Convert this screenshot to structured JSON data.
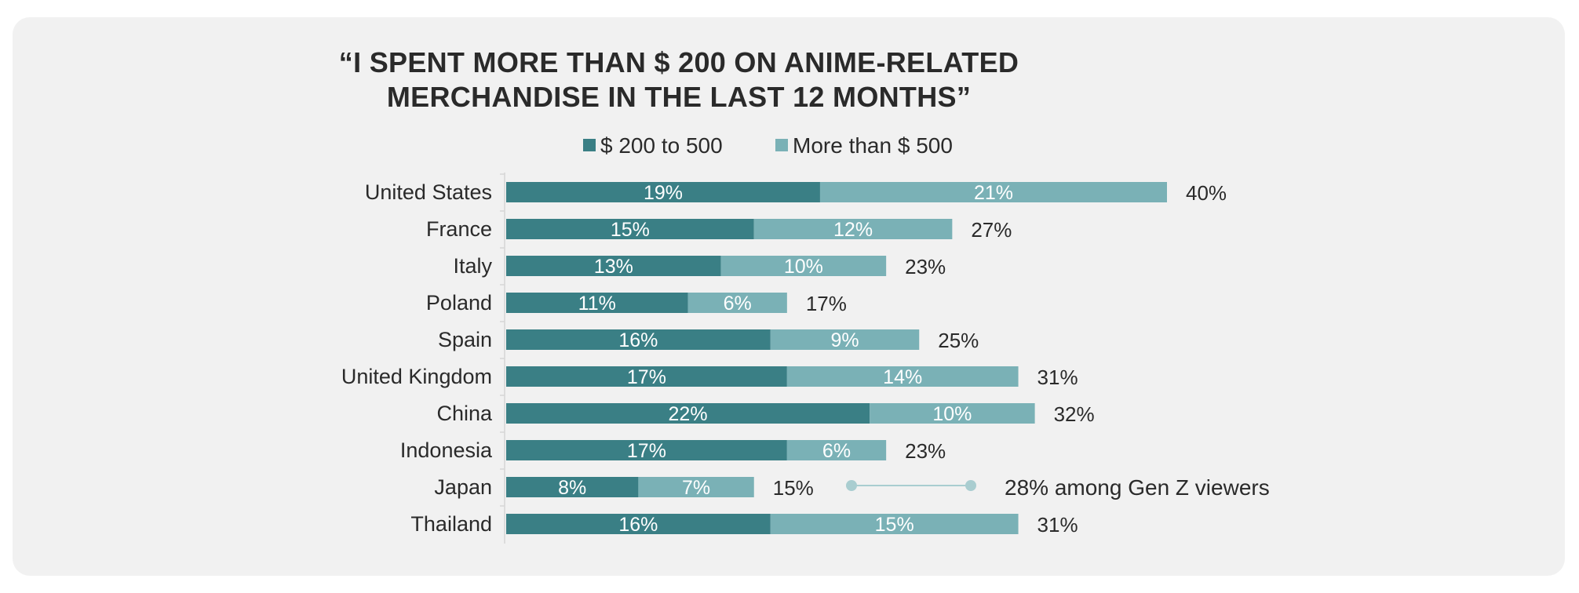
{
  "chart_data": {
    "type": "bar",
    "orientation": "horizontal",
    "stacked": true,
    "title_lines": [
      "“I SPENT MORE THAN $ 200 ON ANIME-RELATED",
      "MERCHANDISE IN THE LAST 12 MONTHS”"
    ],
    "legend_position": "top",
    "categories": [
      "United States",
      "France",
      "Italy",
      "Poland",
      "Spain",
      "United Kingdom",
      "China",
      "Indonesia",
      "Japan",
      "Thailand"
    ],
    "series": [
      {
        "name": "$ 200 to 500",
        "color": "#3a7f85",
        "values": [
          19,
          15,
          13,
          11,
          16,
          17,
          22,
          17,
          8,
          16
        ],
        "labels": [
          "19%",
          "15%",
          "13%",
          "11%",
          "16%",
          "17%",
          "22%",
          "17%",
          "8%",
          "16%"
        ]
      },
      {
        "name": "More than $ 500",
        "color": "#7ab1b6",
        "values": [
          21,
          12,
          10,
          6,
          9,
          14,
          10,
          6,
          7,
          15
        ],
        "labels": [
          "21%",
          "12%",
          "10%",
          "6%",
          "9%",
          "14%",
          "10%",
          "6%",
          "7%",
          "15%"
        ]
      }
    ],
    "totals": [
      40,
      27,
      23,
      17,
      25,
      31,
      32,
      23,
      15,
      31
    ],
    "total_labels": [
      "40%",
      "27%",
      "23%",
      "17%",
      "25%",
      "31%",
      "32%",
      "23%",
      "15%",
      "31%"
    ],
    "annotation": {
      "category": "Japan",
      "text": "28% among Gen Z viewers",
      "value": 28,
      "color": "#a9cdd0"
    },
    "grid": false
  }
}
